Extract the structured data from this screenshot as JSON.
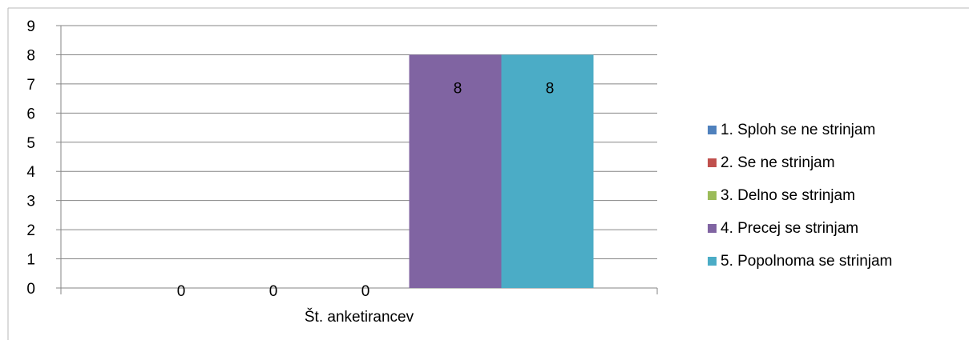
{
  "chart_data": {
    "type": "bar",
    "categories": [
      "Št. anketirancev"
    ],
    "series": [
      {
        "name": "1. Sploh se ne strinjam",
        "values": [
          0
        ],
        "color": "#4F81BD"
      },
      {
        "name": "2. Se ne strinjam",
        "values": [
          0
        ],
        "color": "#C0504D"
      },
      {
        "name": "3. Delno se strinjam",
        "values": [
          0
        ],
        "color": "#9BBB59"
      },
      {
        "name": "4. Precej se strinjam",
        "values": [
          8
        ],
        "color": "#8064A2"
      },
      {
        "name": "5. Popolnoma se strinjam",
        "values": [
          8
        ],
        "color": "#4BACC6"
      }
    ],
    "data_labels": [
      "0",
      "0",
      "0",
      "8",
      "8"
    ],
    "yticks": [
      "0",
      "1",
      "2",
      "3",
      "4",
      "5",
      "6",
      "7",
      "8",
      "9"
    ],
    "ylim": [
      0,
      9
    ],
    "xlabel": "Št. anketirancev",
    "ylabel": "",
    "title": "",
    "grid": true,
    "legend_position": "right"
  }
}
